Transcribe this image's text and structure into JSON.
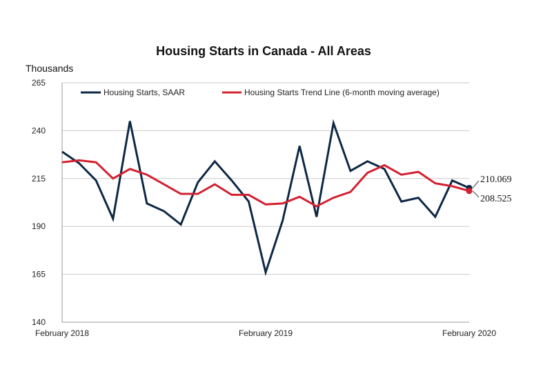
{
  "chart_data": {
    "type": "line",
    "title": "Housing Starts in Canada - All Areas",
    "ylabel": "Thousands",
    "ylim": [
      140,
      265
    ],
    "yticks": [
      140,
      165,
      190,
      215,
      240,
      265
    ],
    "x_tick_labels": [
      {
        "index": 0,
        "label": "February 2018"
      },
      {
        "index": 12,
        "label": "February 2019"
      },
      {
        "index": 24,
        "label": "February 2020"
      }
    ],
    "grid": true,
    "legend_position": "top",
    "series": [
      {
        "name": "Housing Starts, SAAR",
        "color": "#0d2745",
        "values": [
          229,
          223,
          214,
          194,
          245,
          202,
          198,
          191,
          213,
          224,
          214,
          203,
          166,
          193,
          232,
          195,
          244,
          219,
          224,
          220,
          203,
          205,
          195,
          214,
          210.069
        ]
      },
      {
        "name": "Housing Starts Trend Line (6-month moving average)",
        "color": "#d42030",
        "values": [
          223.5,
          224.5,
          223.5,
          215,
          220,
          217,
          212,
          207,
          207,
          212,
          206.5,
          206.5,
          201.5,
          202,
          205.5,
          200.5,
          205,
          208,
          218,
          222,
          217,
          218.5,
          212.5,
          211,
          208.525
        ]
      }
    ],
    "end_labels": [
      "210.069",
      "208.525"
    ]
  }
}
